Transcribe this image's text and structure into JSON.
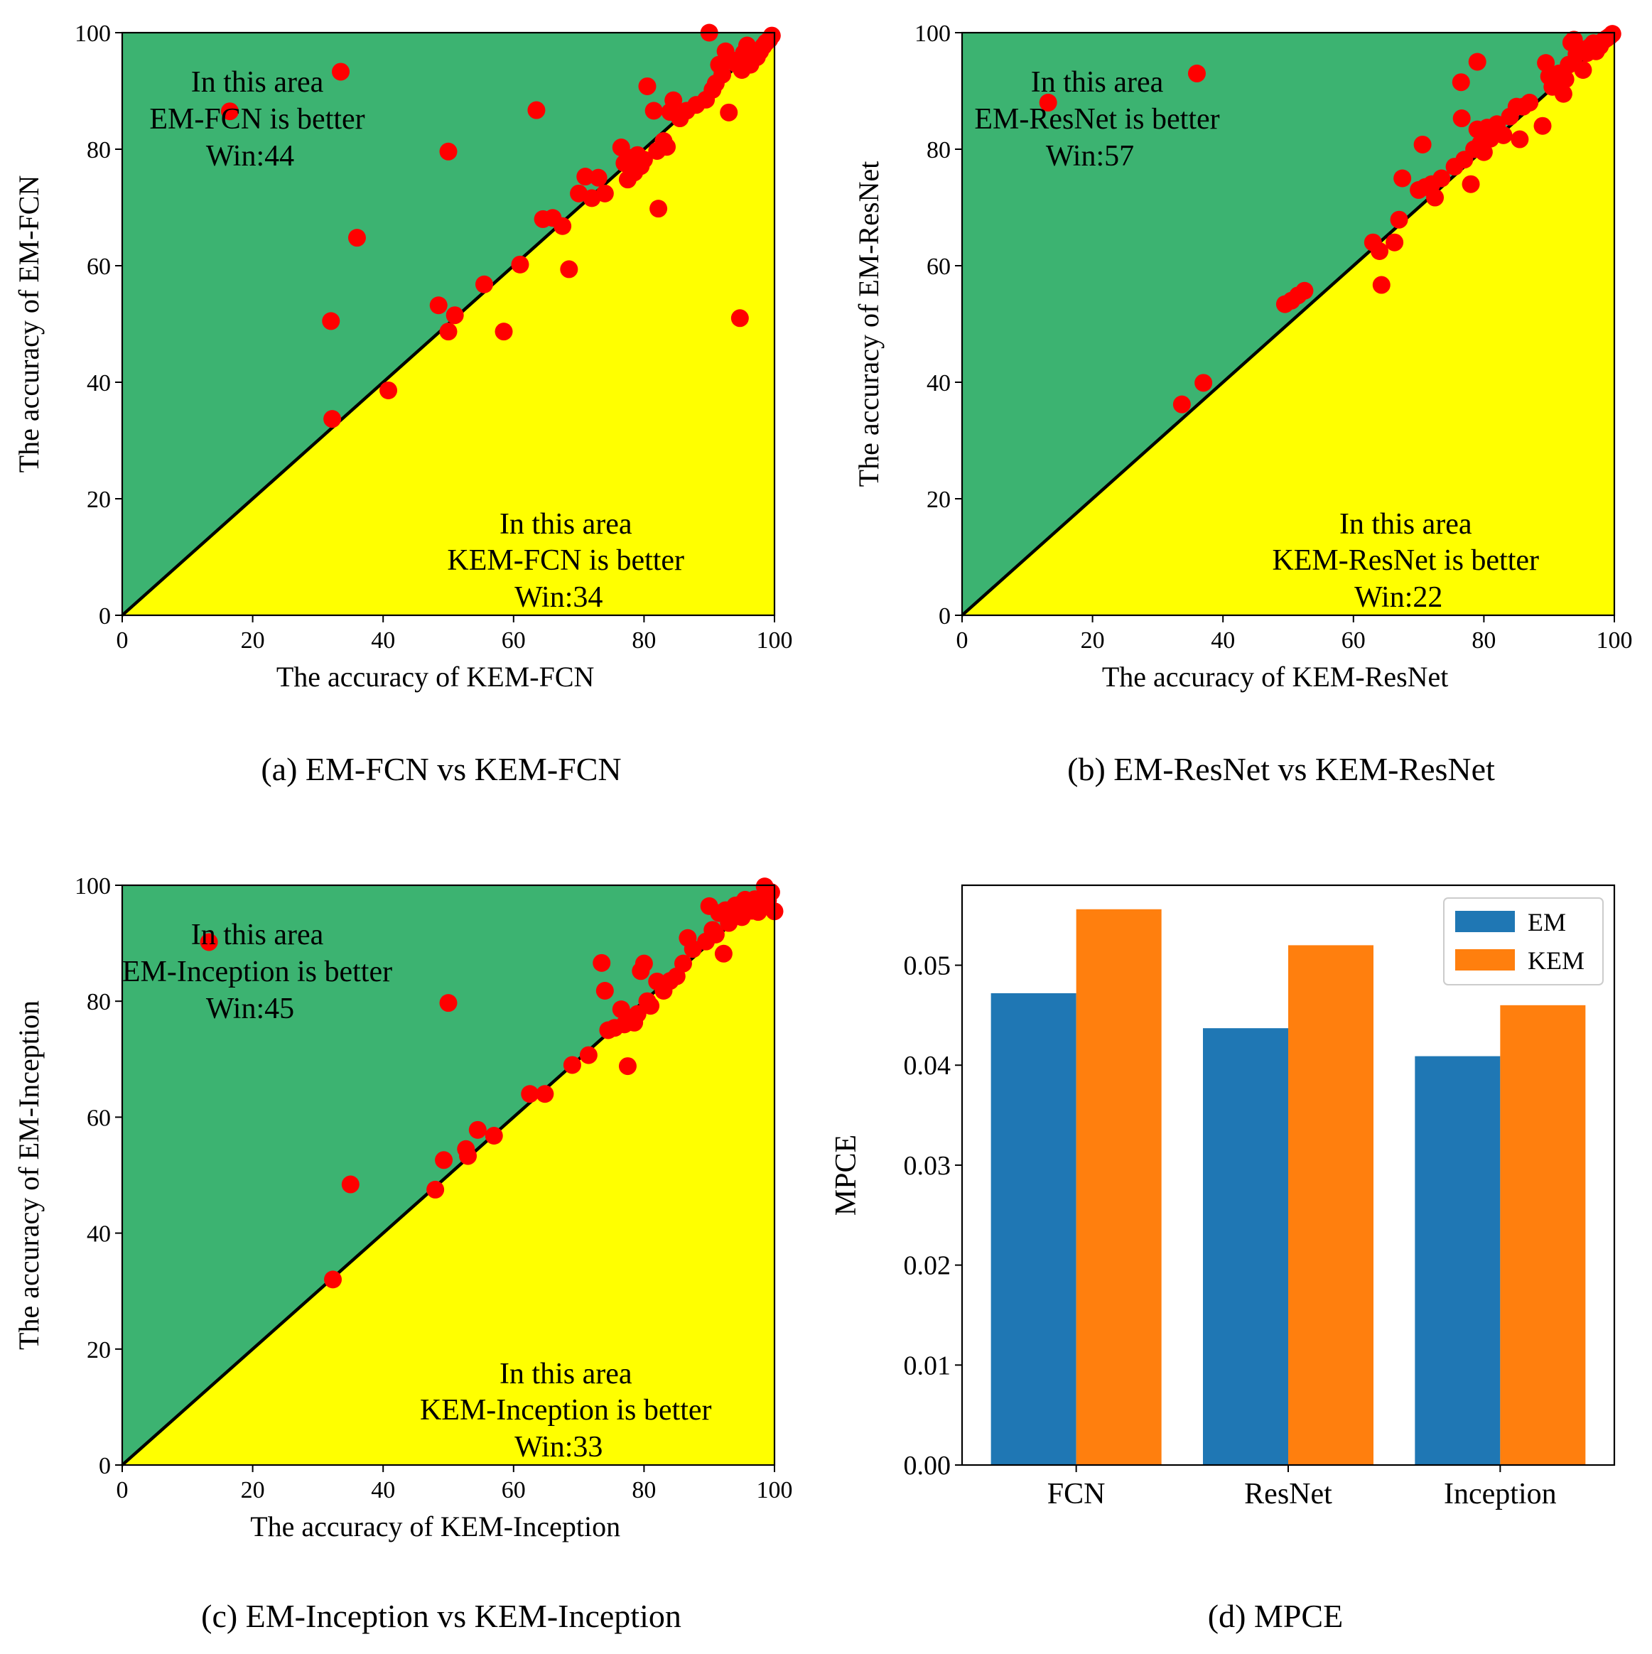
{
  "colors": {
    "green_region": "#3cb371",
    "yellow_region": "#ffff00",
    "point": "#ff0000",
    "diagonal": "#000000",
    "em_bar": "#1f77b4",
    "kem_bar": "#ff7f0e"
  },
  "chart_data": [
    {
      "id": "a",
      "type": "scatter",
      "caption": "(a) EM-FCN vs KEM-FCN",
      "xlabel": "The accuracy of  KEM-FCN",
      "ylabel": "The accuracy of  EM-FCN",
      "xlim": [
        0,
        100
      ],
      "ylim": [
        0,
        100
      ],
      "xticks": [
        0,
        20,
        40,
        60,
        80,
        100
      ],
      "yticks": [
        0,
        20,
        40,
        60,
        80,
        100
      ],
      "upper_annotation": [
        "In this area",
        "EM-FCN is better",
        "Win:44"
      ],
      "lower_annotation": [
        "In this area",
        "KEM-FCN is better",
        "Win:34"
      ],
      "points": [
        [
          16.5,
          86.5
        ],
        [
          33.5,
          93.3
        ],
        [
          36,
          64.8
        ],
        [
          32,
          50.5
        ],
        [
          32.2,
          33.7
        ],
        [
          40.8,
          38.6
        ],
        [
          48.5,
          53.2
        ],
        [
          50,
          48.7
        ],
        [
          50,
          79.6
        ],
        [
          51,
          51.5
        ],
        [
          55.5,
          56.8
        ],
        [
          58.5,
          48.7
        ],
        [
          61,
          60.2
        ],
        [
          63.5,
          86.7
        ],
        [
          64.5,
          68
        ],
        [
          66,
          68.2
        ],
        [
          67.5,
          66.8
        ],
        [
          68.5,
          59.4
        ],
        [
          70,
          72.4
        ],
        [
          71,
          75.3
        ],
        [
          72,
          71.6
        ],
        [
          73,
          75.1
        ],
        [
          74,
          72.4
        ],
        [
          76.5,
          80.3
        ],
        [
          77,
          77.6
        ],
        [
          77.5,
          74.8
        ],
        [
          78,
          78.5
        ],
        [
          78.5,
          76
        ],
        [
          79,
          79
        ],
        [
          79.5,
          77.1
        ],
        [
          80,
          78.2
        ],
        [
          80.5,
          90.8
        ],
        [
          81.5,
          86.6
        ],
        [
          82,
          79.7
        ],
        [
          82.2,
          69.8
        ],
        [
          83,
          81.4
        ],
        [
          83.5,
          80.4
        ],
        [
          84,
          86.4
        ],
        [
          84.5,
          88.4
        ],
        [
          85.5,
          85.3
        ],
        [
          86.5,
          86.6
        ],
        [
          88,
          87.6
        ],
        [
          89.5,
          88.5
        ],
        [
          90,
          100
        ],
        [
          90.5,
          90.2
        ],
        [
          91,
          91.3
        ],
        [
          91.5,
          94.5
        ],
        [
          92,
          92.8
        ],
        [
          92.5,
          96.8
        ],
        [
          93,
          86.3
        ],
        [
          93.2,
          95.3
        ],
        [
          93.8,
          95.2
        ],
        [
          94.2,
          94.6
        ],
        [
          94.7,
          51
        ],
        [
          95,
          93.6
        ],
        [
          95.3,
          96.5
        ],
        [
          95.8,
          97.8
        ],
        [
          96.3,
          94.5
        ],
        [
          96.8,
          96.6
        ],
        [
          97.3,
          95.8
        ],
        [
          97.8,
          96.8
        ],
        [
          98.3,
          97.7
        ],
        [
          98.7,
          98.3
        ],
        [
          99.2,
          98.8
        ],
        [
          99.6,
          99.5
        ]
      ]
    },
    {
      "id": "b",
      "type": "scatter",
      "caption": "(b) EM-ResNet vs KEM-ResNet",
      "xlabel": "The accuracy of  KEM-ResNet",
      "ylabel": "The accuracy of  EM-ResNet",
      "xlim": [
        0,
        100
      ],
      "ylim": [
        0,
        100
      ],
      "xticks": [
        0,
        20,
        40,
        60,
        80,
        100
      ],
      "yticks": [
        0,
        20,
        40,
        60,
        80,
        100
      ],
      "upper_annotation": [
        "In this area",
        "EM-ResNet is better",
        "Win:57"
      ],
      "lower_annotation": [
        "In this area",
        "KEM-ResNet is better",
        "Win:22"
      ],
      "points": [
        [
          13.2,
          88
        ],
        [
          36,
          93
        ],
        [
          33.7,
          36.2
        ],
        [
          37,
          39.9
        ],
        [
          49.5,
          53.4
        ],
        [
          50.5,
          54
        ],
        [
          51.5,
          54.9
        ],
        [
          52.5,
          55.7
        ],
        [
          63,
          64
        ],
        [
          64,
          62.5
        ],
        [
          64.3,
          56.7
        ],
        [
          66.3,
          64
        ],
        [
          67,
          67.9
        ],
        [
          67.5,
          75
        ],
        [
          70,
          73
        ],
        [
          70.6,
          80.8
        ],
        [
          71,
          73.5
        ],
        [
          72,
          74
        ],
        [
          72.5,
          71.7
        ],
        [
          73.5,
          75
        ],
        [
          75.5,
          77
        ],
        [
          76.5,
          91.5
        ],
        [
          76.6,
          85.3
        ],
        [
          77,
          78.2
        ],
        [
          78,
          74
        ],
        [
          78.5,
          80
        ],
        [
          79,
          83.4
        ],
        [
          79,
          95
        ],
        [
          79.5,
          81
        ],
        [
          80,
          79.5
        ],
        [
          80.5,
          83.7
        ],
        [
          81,
          81.8
        ],
        [
          82,
          84.3
        ],
        [
          83,
          82.4
        ],
        [
          84,
          85.6
        ],
        [
          85,
          87.3
        ],
        [
          85.5,
          81.7
        ],
        [
          86,
          87.3
        ],
        [
          87,
          88
        ],
        [
          89,
          84
        ],
        [
          89.5,
          94.8
        ],
        [
          90,
          92.5
        ],
        [
          90.5,
          90.7
        ],
        [
          91,
          91.5
        ],
        [
          91.5,
          93
        ],
        [
          92.2,
          89.5
        ],
        [
          92.5,
          92
        ],
        [
          93,
          94.5
        ],
        [
          93.4,
          98.3
        ],
        [
          93.8,
          98.8
        ],
        [
          94.2,
          96.3
        ],
        [
          94.8,
          97.2
        ],
        [
          95.2,
          93.6
        ],
        [
          95.8,
          96.5
        ],
        [
          96.3,
          97.6
        ],
        [
          96.8,
          98.2
        ],
        [
          97.2,
          96.8
        ],
        [
          97.8,
          97.7
        ],
        [
          98.3,
          98.6
        ],
        [
          98.8,
          99
        ],
        [
          99.3,
          99.4
        ],
        [
          99.7,
          99.8
        ]
      ]
    },
    {
      "id": "c",
      "type": "scatter",
      "caption": "(c) EM-Inception vs KEM-Inception",
      "xlabel": "The accuracy of  KEM-Inception",
      "ylabel": "The accuracy of  EM-Inception",
      "xlim": [
        0,
        100
      ],
      "ylim": [
        0,
        100
      ],
      "xticks": [
        0,
        20,
        40,
        60,
        80,
        100
      ],
      "yticks": [
        0,
        20,
        40,
        60,
        80,
        100
      ],
      "upper_annotation": [
        "In this area",
        "EM-Inception is better",
        "Win:45"
      ],
      "lower_annotation": [
        "In this area",
        "KEM-Inception is better",
        "Win:33"
      ],
      "points": [
        [
          13.3,
          90.2
        ],
        [
          35,
          48.4
        ],
        [
          32.3,
          32
        ],
        [
          48,
          47.5
        ],
        [
          49.3,
          52.6
        ],
        [
          50,
          79.7
        ],
        [
          52.7,
          54.5
        ],
        [
          53,
          53.3
        ],
        [
          54.5,
          57.8
        ],
        [
          57,
          56.8
        ],
        [
          62.5,
          64
        ],
        [
          64.8,
          64
        ],
        [
          69,
          69
        ],
        [
          71.5,
          70.7
        ],
        [
          73.5,
          86.6
        ],
        [
          74,
          81.8
        ],
        [
          74.5,
          75
        ],
        [
          75.5,
          75.4
        ],
        [
          76.5,
          78.6
        ],
        [
          77,
          76
        ],
        [
          77.5,
          68.8
        ],
        [
          78,
          77
        ],
        [
          78.5,
          76.3
        ],
        [
          79,
          77.8
        ],
        [
          79.5,
          85.2
        ],
        [
          80,
          86.5
        ],
        [
          80.5,
          80
        ],
        [
          81,
          79.2
        ],
        [
          82,
          83.4
        ],
        [
          83,
          81.8
        ],
        [
          84,
          83.5
        ],
        [
          85,
          84.3
        ],
        [
          86,
          86.5
        ],
        [
          86.7,
          90.9
        ],
        [
          87.5,
          89
        ],
        [
          89.5,
          90.3
        ],
        [
          90,
          96.4
        ],
        [
          90.5,
          92.3
        ],
        [
          91,
          91.5
        ],
        [
          91.5,
          95.2
        ],
        [
          92.2,
          88.2
        ],
        [
          92.5,
          95.7
        ],
        [
          93,
          93.5
        ],
        [
          93.5,
          95
        ],
        [
          94,
          96.5
        ],
        [
          94.5,
          96.6
        ],
        [
          95,
          94.5
        ],
        [
          95.5,
          97.5
        ],
        [
          96,
          97.2
        ],
        [
          96.5,
          95.6
        ],
        [
          97,
          97.6
        ],
        [
          97.5,
          95.4
        ],
        [
          98,
          96.6
        ],
        [
          98.5,
          99.8
        ],
        [
          99,
          97.4
        ],
        [
          99.5,
          98.8
        ],
        [
          100,
          95.5
        ]
      ]
    },
    {
      "id": "d",
      "type": "bar",
      "caption": "(d) MPCE",
      "ylabel": "MPCE",
      "categories": [
        "FCN",
        "ResNet",
        "Inception"
      ],
      "series": [
        {
          "name": "EM",
          "values": [
            0.0472,
            0.0437,
            0.0409
          ]
        },
        {
          "name": "KEM",
          "values": [
            0.0556,
            0.052,
            0.046
          ]
        }
      ],
      "ylim": [
        0,
        0.058
      ],
      "yticks": [
        "0.00",
        "0.01",
        "0.02",
        "0.03",
        "0.04",
        "0.05"
      ],
      "legend": "top-right"
    }
  ]
}
